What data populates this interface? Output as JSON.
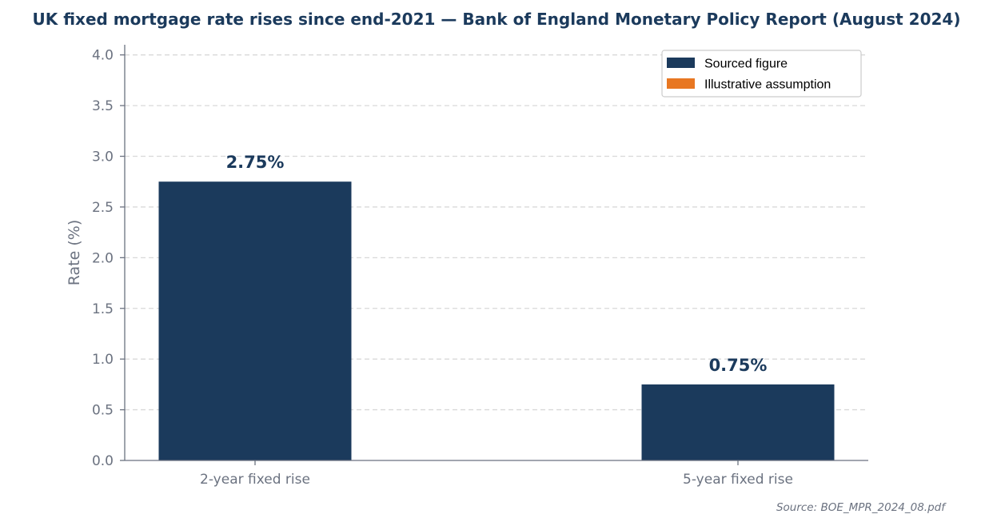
{
  "chart_data": {
    "type": "bar",
    "title": "UK fixed mortgage rate rises since end-2021 — Bank of England Monetary Policy Report (August 2024)",
    "xlabel": "",
    "ylabel": "Rate (%)",
    "ylim": [
      0,
      4.1
    ],
    "yticks": [
      "0.0",
      "0.5",
      "1.0",
      "1.5",
      "2.0",
      "2.5",
      "3.0",
      "3.5",
      "4.0"
    ],
    "ytick_values": [
      0,
      0.5,
      1.0,
      1.5,
      2.0,
      2.5,
      3.0,
      3.5,
      4.0
    ],
    "categories": [
      "2-year fixed rise",
      "5-year fixed rise"
    ],
    "values": [
      2.75,
      0.75
    ],
    "data_labels": [
      "2.75%",
      "0.75%"
    ],
    "bar_types": [
      "sourced",
      "sourced"
    ],
    "grid": true,
    "legend": {
      "placement": "top-right",
      "entries": [
        {
          "label": "Sourced figure",
          "type": "sourced",
          "color": "#1b3a5c"
        },
        {
          "label": "Illustrative assumption",
          "type": "illustrative",
          "color": "#e87722"
        }
      ]
    },
    "colors": {
      "sourced": "#1b3a5c",
      "illustrative": "#e87722",
      "title": "#1b3a5c",
      "axis": "#6b7280",
      "grid": "#d9d9d9"
    },
    "source": "Source: BOE_MPR_2024_08.pdf"
  }
}
